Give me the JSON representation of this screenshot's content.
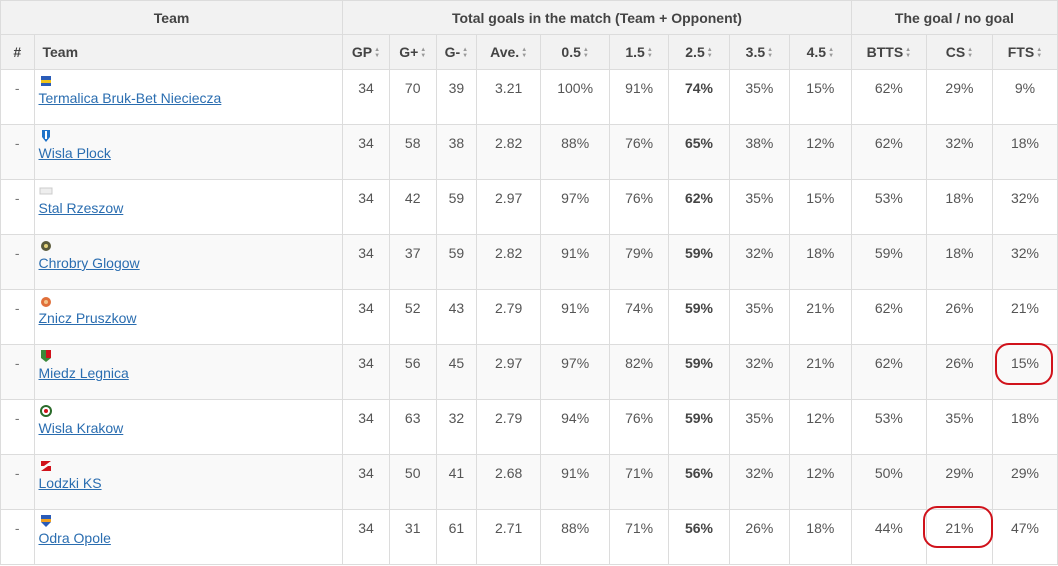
{
  "header_groups": {
    "team": "Team",
    "total_goals": "Total goals in the match (Team + Opponent)",
    "goal_no_goal": "The goal / no goal"
  },
  "columns": {
    "rank": "#",
    "team": "Team",
    "gp": "GP",
    "g_plus": "G+",
    "g_minus": "G-",
    "ave": "Ave.",
    "o05": "0.5",
    "o15": "1.5",
    "o25": "2.5",
    "o35": "3.5",
    "o45": "4.5",
    "btts": "BTTS",
    "cs": "CS",
    "fts": "FTS"
  },
  "sort_icon": "sort-arrows-icon",
  "highlight_color": "#d0121b",
  "rows": [
    {
      "rank": "-",
      "team": "Termalica Bruk-Bet Nieciecza",
      "logo": "termalica-logo-icon",
      "gp": "34",
      "g_plus": "70",
      "g_minus": "39",
      "ave": "3.21",
      "o05": "100%",
      "o15": "91%",
      "o25": "74%",
      "o35": "35%",
      "o45": "15%",
      "btts": "62%",
      "cs": "29%",
      "fts": "9%"
    },
    {
      "rank": "-",
      "team": "Wisla Plock",
      "logo": "wisla-plock-logo-icon",
      "gp": "34",
      "g_plus": "58",
      "g_minus": "38",
      "ave": "2.82",
      "o05": "88%",
      "o15": "76%",
      "o25": "65%",
      "o35": "38%",
      "o45": "12%",
      "btts": "62%",
      "cs": "32%",
      "fts": "18%"
    },
    {
      "rank": "-",
      "team": "Stal Rzeszow",
      "logo": "stal-rzeszow-logo-icon",
      "gp": "34",
      "g_plus": "42",
      "g_minus": "59",
      "ave": "2.97",
      "o05": "97%",
      "o15": "76%",
      "o25": "62%",
      "o35": "35%",
      "o45": "15%",
      "btts": "53%",
      "cs": "18%",
      "fts": "32%"
    },
    {
      "rank": "-",
      "team": "Chrobry Glogow",
      "logo": "chrobry-logo-icon",
      "gp": "34",
      "g_plus": "37",
      "g_minus": "59",
      "ave": "2.82",
      "o05": "91%",
      "o15": "79%",
      "o25": "59%",
      "o35": "32%",
      "o45": "18%",
      "btts": "59%",
      "cs": "18%",
      "fts": "32%"
    },
    {
      "rank": "-",
      "team": "Znicz Pruszkow",
      "logo": "znicz-logo-icon",
      "gp": "34",
      "g_plus": "52",
      "g_minus": "43",
      "ave": "2.79",
      "o05": "91%",
      "o15": "74%",
      "o25": "59%",
      "o35": "35%",
      "o45": "21%",
      "btts": "62%",
      "cs": "26%",
      "fts": "21%"
    },
    {
      "rank": "-",
      "team": "Miedz Legnica",
      "logo": "miedz-logo-icon",
      "gp": "34",
      "g_plus": "56",
      "g_minus": "45",
      "ave": "2.97",
      "o05": "97%",
      "o15": "82%",
      "o25": "59%",
      "o35": "32%",
      "o45": "21%",
      "btts": "62%",
      "cs": "26%",
      "fts": "15%"
    },
    {
      "rank": "-",
      "team": "Wisla Krakow",
      "logo": "wisla-krakow-logo-icon",
      "gp": "34",
      "g_plus": "63",
      "g_minus": "32",
      "ave": "2.79",
      "o05": "94%",
      "o15": "76%",
      "o25": "59%",
      "o35": "35%",
      "o45": "12%",
      "btts": "53%",
      "cs": "35%",
      "fts": "18%"
    },
    {
      "rank": "-",
      "team": "Lodzki KS",
      "logo": "lks-logo-icon",
      "gp": "34",
      "g_plus": "50",
      "g_minus": "41",
      "ave": "2.68",
      "o05": "91%",
      "o15": "71%",
      "o25": "56%",
      "o35": "32%",
      "o45": "12%",
      "btts": "50%",
      "cs": "29%",
      "fts": "29%"
    },
    {
      "rank": "-",
      "team": "Odra Opole",
      "logo": "odra-logo-icon",
      "gp": "34",
      "g_plus": "31",
      "g_minus": "61",
      "ave": "2.71",
      "o05": "88%",
      "o15": "71%",
      "o25": "56%",
      "o35": "26%",
      "o45": "18%",
      "btts": "44%",
      "cs": "21%",
      "fts": "47%"
    }
  ]
}
